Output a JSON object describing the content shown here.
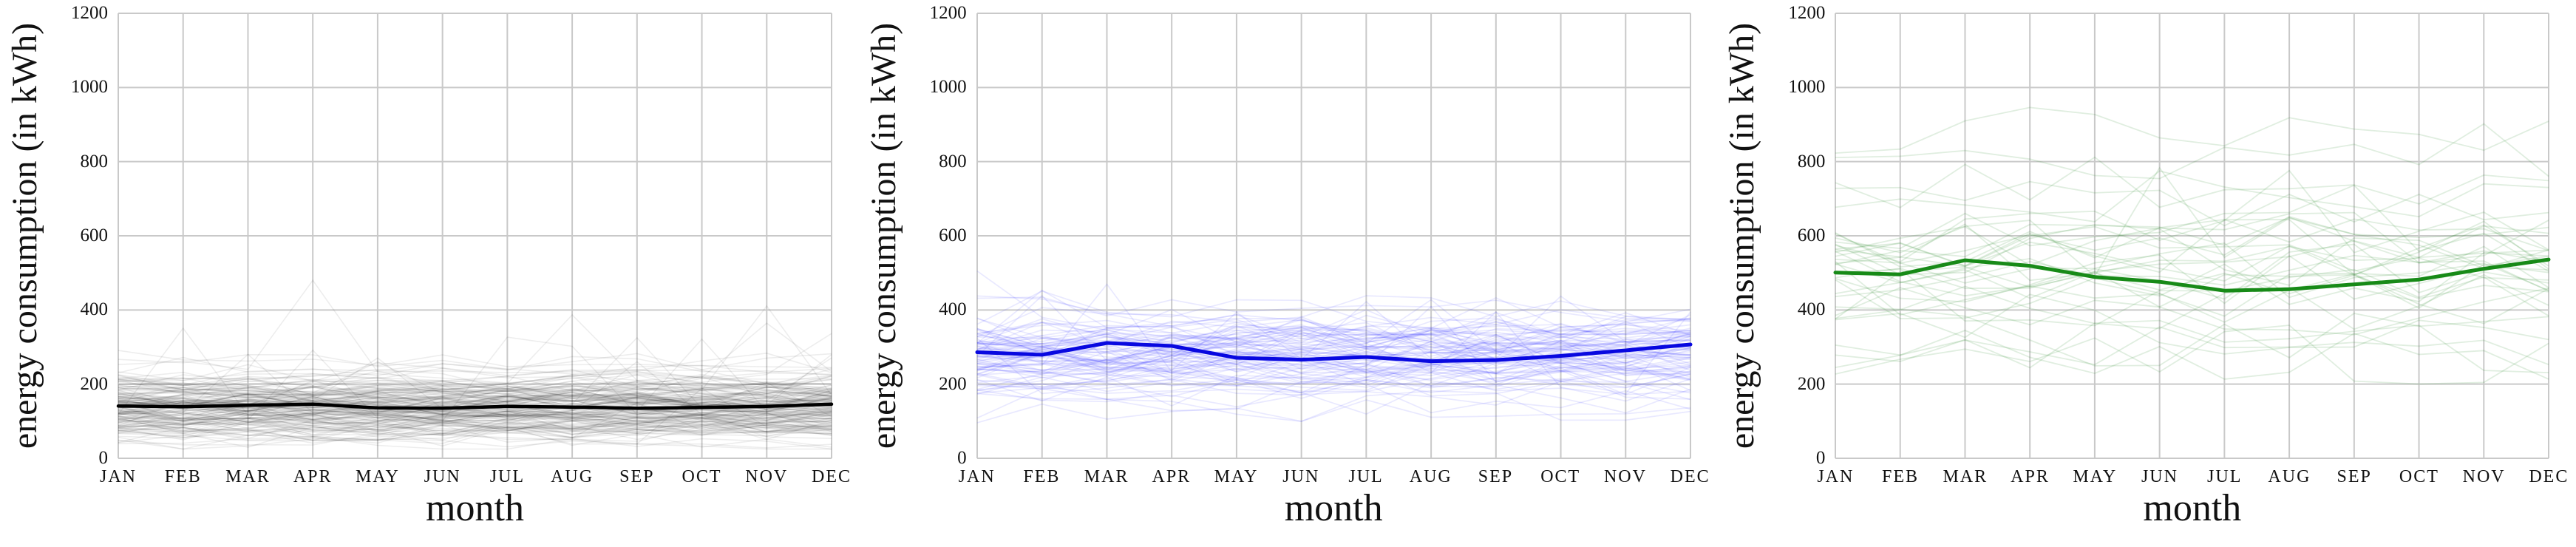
{
  "figure": {
    "ylabel": "energy consumption (in kWh)",
    "xlabel": "month",
    "months": [
      "JAN",
      "FEB",
      "MAR",
      "APR",
      "MAY",
      "JUN",
      "JUL",
      "AUG",
      "SEP",
      "OCT",
      "NOV",
      "DEC"
    ],
    "ytick_labels": [
      "0",
      "200",
      "400",
      "600",
      "800",
      "1000",
      "1200"
    ]
  },
  "chart_data": [
    {
      "type": "line",
      "title": "",
      "xlabel": "month",
      "ylabel": "energy consumption (in kWh)",
      "categories": [
        "JAN",
        "FEB",
        "MAR",
        "APR",
        "MAY",
        "JUN",
        "JUL",
        "AUG",
        "SEP",
        "OCT",
        "NOV",
        "DEC"
      ],
      "ylim": [
        0,
        1200
      ],
      "yticks": [
        0,
        200,
        400,
        600,
        800,
        1000,
        1200
      ],
      "grid": true,
      "legend": "none",
      "grid_color": "#c9c9c9",
      "series": [
        {
          "name": "mean",
          "role": "mean-line",
          "color": "#000000",
          "width": 4.5,
          "values": [
            141,
            139,
            143,
            146,
            136,
            135,
            140,
            138,
            135,
            137,
            140,
            146
          ]
        }
      ],
      "background_ensemble": {
        "note": "many overlapping faint individual lines, values estimated from pixels",
        "count": 170,
        "seed": 7,
        "color": "#000000",
        "opacity": 0.07,
        "width": 1.6,
        "base_mean": 140,
        "base_sd": 45,
        "base_range": [
          35,
          265
        ],
        "monthly_noise": 28,
        "spike_prob": 0.012,
        "spike_max": 230,
        "value_range": [
          25,
          480
        ]
      }
    },
    {
      "type": "line",
      "title": "",
      "xlabel": "month",
      "ylabel": "energy consumption (in kWh)",
      "categories": [
        "JAN",
        "FEB",
        "MAR",
        "APR",
        "MAY",
        "JUN",
        "JUL",
        "AUG",
        "SEP",
        "OCT",
        "NOV",
        "DEC"
      ],
      "ylim": [
        0,
        1200
      ],
      "yticks": [
        0,
        200,
        400,
        600,
        800,
        1000,
        1200
      ],
      "grid": true,
      "legend": "none",
      "grid_color": "#c9c9c9",
      "series": [
        {
          "name": "mean",
          "role": "mean-line",
          "color": "#0808e0",
          "width": 5,
          "values": [
            286,
            279,
            311,
            303,
            271,
            266,
            273,
            262,
            265,
            276,
            291,
            307
          ]
        }
      ],
      "background_ensemble": {
        "note": "many overlapping faint individual lines, values estimated from pixels",
        "count": 90,
        "seed": 13,
        "color": "#3a3aff",
        "opacity": 0.11,
        "width": 1.7,
        "base_mean": 283,
        "base_sd": 58,
        "base_range": [
          115,
          425
        ],
        "monthly_noise": 46,
        "spike_prob": 0.015,
        "spike_max": 240,
        "value_range": [
          90,
          660
        ]
      }
    },
    {
      "type": "line",
      "title": "",
      "xlabel": "month",
      "ylabel": "energy consumption (in kWh)",
      "categories": [
        "JAN",
        "FEB",
        "MAR",
        "APR",
        "MAY",
        "JUN",
        "JUL",
        "AUG",
        "SEP",
        "OCT",
        "NOV",
        "DEC"
      ],
      "ylim": [
        0,
        1200
      ],
      "yticks": [
        0,
        200,
        400,
        600,
        800,
        1000,
        1200
      ],
      "grid": true,
      "legend": "none",
      "grid_color": "#c9c9c9",
      "series": [
        {
          "name": "mean",
          "role": "mean-line",
          "color": "#178a17",
          "width": 5,
          "values": [
            501,
            496,
            534,
            519,
            489,
            476,
            452,
            456,
            469,
            482,
            511,
            536
          ]
        }
      ],
      "background_ensemble": {
        "note": "fewer, wider-spread faint individual lines, values estimated from pixels",
        "count": 36,
        "seed": 21,
        "color": "#2e8b2e",
        "opacity": 0.15,
        "width": 1.8,
        "base_mean": 490,
        "base_sd": 170,
        "base_range": [
          170,
          900
        ],
        "monthly_noise": 85,
        "spike_prob": 0.03,
        "spike_max": 200,
        "value_range": [
          110,
          1085
        ]
      }
    }
  ]
}
